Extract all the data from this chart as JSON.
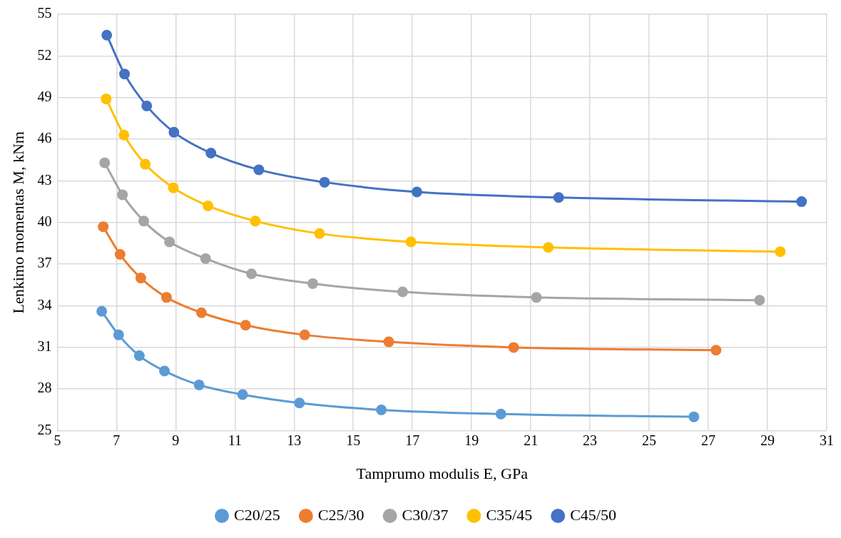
{
  "chart_data": {
    "type": "line",
    "xlabel": "Tamprumo modulis E, GPa",
    "ylabel": "Lenkimo momentas M, kNm",
    "xlim": [
      5,
      31
    ],
    "xticks": [
      5,
      7,
      9,
      11,
      13,
      15,
      17,
      19,
      21,
      23,
      25,
      27,
      29,
      31
    ],
    "ylim": [
      25,
      55
    ],
    "yticks": [
      25,
      28,
      31,
      34,
      37,
      40,
      43,
      46,
      49,
      52,
      55
    ],
    "grid": true,
    "legend": "bottom",
    "marker": "circle",
    "line_style": "solid",
    "series": [
      {
        "name": "C20/25",
        "color": "#5b9bd5",
        "x": [
          6.5,
          7.07,
          7.77,
          8.62,
          9.79,
          11.26,
          13.18,
          15.95,
          19.99,
          26.51
        ],
        "values": [
          33.6,
          31.9,
          30.4,
          29.3,
          28.3,
          27.6,
          27.0,
          26.5,
          26.2,
          26.0
        ]
      },
      {
        "name": "C25/30",
        "color": "#ed7d31",
        "x": [
          6.55,
          7.12,
          7.82,
          8.69,
          9.87,
          11.36,
          13.36,
          16.2,
          20.42,
          27.26
        ],
        "values": [
          39.7,
          37.7,
          36.0,
          34.6,
          33.5,
          32.6,
          31.9,
          31.4,
          31.0,
          30.8
        ]
      },
      {
        "name": "C30/37",
        "color": "#a5a5a5",
        "x": [
          6.6,
          7.2,
          7.92,
          8.79,
          10.01,
          11.56,
          13.63,
          16.67,
          21.19,
          28.73
        ],
        "values": [
          44.3,
          42.0,
          40.1,
          38.6,
          37.4,
          36.3,
          35.6,
          35.0,
          34.6,
          34.4
        ]
      },
      {
        "name": "C35/45",
        "color": "#ffc000",
        "x": [
          6.65,
          7.25,
          7.97,
          8.92,
          10.09,
          11.69,
          13.86,
          16.95,
          21.59,
          29.43
        ],
        "values": [
          48.9,
          46.3,
          44.2,
          42.5,
          41.2,
          40.1,
          39.2,
          38.6,
          38.2,
          37.9
        ]
      },
      {
        "name": "C45/50",
        "color": "#4472c4",
        "x": [
          6.67,
          7.27,
          8.02,
          8.94,
          10.19,
          11.81,
          14.03,
          17.15,
          21.94,
          30.15
        ],
        "values": [
          53.5,
          50.7,
          48.4,
          46.5,
          45.0,
          43.8,
          42.9,
          42.2,
          41.8,
          41.5
        ]
      }
    ]
  }
}
